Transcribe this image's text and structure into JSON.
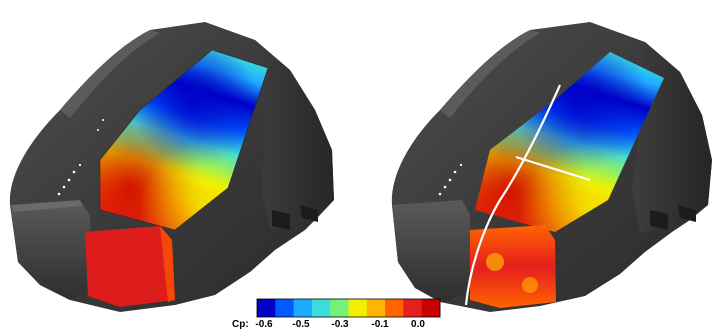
{
  "colorbar": {
    "title": "Cp:",
    "tick_labels": [
      "-0.6",
      "-0.5",
      "-0.3",
      "-0.1",
      "0.0"
    ],
    "colors": [
      "#0000c8",
      "#005aff",
      "#1eaaff",
      "#3cdcdc",
      "#78f078",
      "#f0f000",
      "#ffb400",
      "#ff6400",
      "#e61e1e",
      "#c80000"
    ]
  },
  "models": [
    {
      "name": "left-vehicle-model",
      "has_split_lines": false
    },
    {
      "name": "right-vehicle-model",
      "has_split_lines": true
    }
  ]
}
